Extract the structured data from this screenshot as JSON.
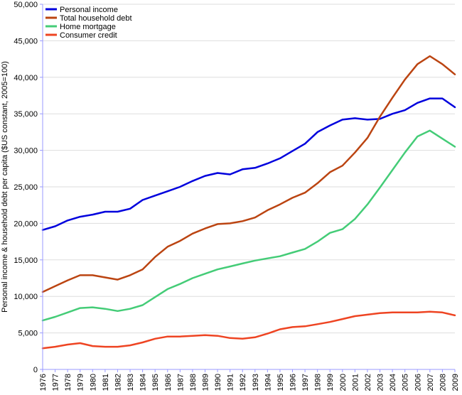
{
  "chart_data": {
    "type": "line",
    "title": "",
    "xlabel": "",
    "ylabel": "Personal income & household debt per capita ($US constant, 2005=100)",
    "x": [
      "1976",
      "1977",
      "1978",
      "1979",
      "1980",
      "1981",
      "1982",
      "1983",
      "1984",
      "1985",
      "1986",
      "1987",
      "1988",
      "1989",
      "1990",
      "1991",
      "1992",
      "1993",
      "1994",
      "1995",
      "1996",
      "1997",
      "1998",
      "1999",
      "2000",
      "2001",
      "2002",
      "2003",
      "2004",
      "2005",
      "2006",
      "2007",
      "2008",
      "2009"
    ],
    "ylim": [
      0,
      50000
    ],
    "yticks": [
      0,
      5000,
      10000,
      15000,
      20000,
      25000,
      30000,
      35000,
      40000,
      45000,
      50000
    ],
    "ytick_labels": [
      "0",
      "5,000",
      "10,000",
      "15,000",
      "20,000",
      "25,000",
      "30,000",
      "35,000",
      "40,000",
      "45,000",
      "50,000"
    ],
    "grid": "horizontal",
    "legend": "top-left",
    "series": [
      {
        "name": "Personal income",
        "color": "#0000dd",
        "values": [
          19100,
          19600,
          20400,
          20900,
          21200,
          21600,
          21600,
          22000,
          23200,
          23800,
          24400,
          25000,
          25800,
          26500,
          26900,
          26700,
          27400,
          27600,
          28200,
          28900,
          29900,
          30900,
          32500,
          33400,
          34200,
          34400,
          34200,
          34300,
          35000,
          35500,
          36500,
          37100,
          37100,
          35900
        ]
      },
      {
        "name": "Total household debt",
        "color": "#bb4411",
        "values": [
          10600,
          11400,
          12200,
          12900,
          12900,
          12600,
          12300,
          12900,
          13700,
          15400,
          16800,
          17600,
          18600,
          19300,
          19900,
          20000,
          20300,
          20800,
          21800,
          22600,
          23500,
          24200,
          25500,
          27000,
          27900,
          29700,
          31700,
          34600,
          37200,
          39700,
          41800,
          42900,
          41800,
          40400
        ]
      },
      {
        "name": "Home mortgage",
        "color": "#44cc77",
        "values": [
          6700,
          7200,
          7800,
          8400,
          8500,
          8300,
          8000,
          8300,
          8800,
          9900,
          11000,
          11700,
          12500,
          13100,
          13700,
          14100,
          14500,
          14900,
          15200,
          15500,
          16000,
          16500,
          17500,
          18700,
          19200,
          20600,
          22600,
          24900,
          27300,
          29700,
          31900,
          32700,
          31600,
          30500
        ]
      },
      {
        "name": "Consumer credit",
        "color": "#ee4422",
        "values": [
          2900,
          3100,
          3400,
          3600,
          3200,
          3100,
          3100,
          3300,
          3700,
          4200,
          4500,
          4500,
          4600,
          4700,
          4600,
          4300,
          4200,
          4400,
          4900,
          5500,
          5800,
          5900,
          6200,
          6500,
          6900,
          7300,
          7500,
          7700,
          7800,
          7800,
          7800,
          7900,
          7800,
          7400
        ]
      }
    ]
  }
}
